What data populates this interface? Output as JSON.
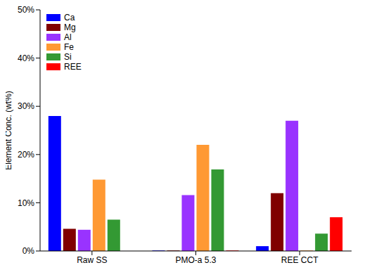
{
  "chart_data": {
    "type": "bar",
    "y_label": "Element Conc. (wt%)",
    "categories": [
      "Raw SS",
      "PMO-a 5.3",
      "REE CCT"
    ],
    "series": [
      {
        "name": "Ca",
        "color": "#0000ff",
        "values": [
          28,
          0.1,
          1.0
        ]
      },
      {
        "name": "Mg",
        "color": "#800000",
        "values": [
          4.6,
          0.1,
          12
        ]
      },
      {
        "name": "Al",
        "color": "#9933ff",
        "values": [
          4.4,
          11.6,
          27
        ]
      },
      {
        "name": "Fe",
        "color": "#ff9933",
        "values": [
          14.8,
          22,
          0.1
        ]
      },
      {
        "name": "Si",
        "color": "#339933",
        "values": [
          6.5,
          16.9,
          3.6
        ]
      },
      {
        "name": "REE",
        "color": "#ff0000",
        "values": [
          0,
          0.1,
          7
        ]
      }
    ],
    "ylim": [
      0,
      50
    ],
    "yticks": [
      {
        "value": 0,
        "label": "0%"
      },
      {
        "value": 10,
        "label": "10%"
      },
      {
        "value": 20,
        "label": "20%"
      },
      {
        "value": 30,
        "label": "30%"
      },
      {
        "value": 40,
        "label": "40%"
      },
      {
        "value": 50,
        "label": "50%"
      }
    ],
    "legend": "upper left",
    "grid": false
  }
}
